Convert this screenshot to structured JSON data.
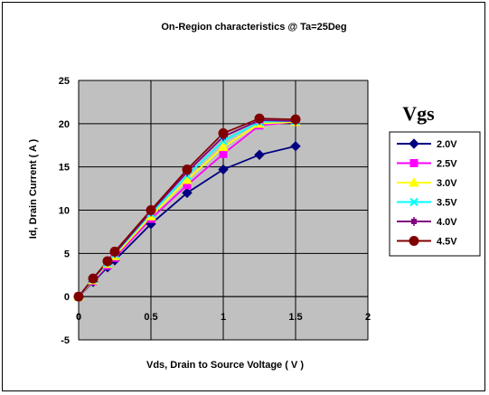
{
  "chart_data": {
    "type": "line",
    "title": "On-Region characteristics @ Ta=25Deg",
    "xlabel": "Vds, Drain to Source Voltage ( V )",
    "ylabel": "Id, Drain Current ( A )",
    "xlim": [
      0,
      2
    ],
    "ylim": [
      -5,
      25
    ],
    "xticks": [
      0,
      0.5,
      1,
      1.5,
      2
    ],
    "xtick_labels": [
      "0",
      "0.5",
      "1",
      "1.5",
      "2"
    ],
    "yticks": [
      -5,
      0,
      5,
      10,
      15,
      20,
      25
    ],
    "ytick_labels": [
      "-5",
      "0",
      "5",
      "10",
      "15",
      "20",
      "25"
    ],
    "grid": true,
    "legend_title": "Vgs",
    "legend_position": "right",
    "x": [
      0,
      0.1,
      0.2,
      0.25,
      0.5,
      0.75,
      1.0,
      1.25,
      1.5
    ],
    "series": [
      {
        "name": "2.0V",
        "color": "#000080",
        "marker": "diamond",
        "values": [
          0,
          1.7,
          3.4,
          4.2,
          8.4,
          12.0,
          14.7,
          16.4,
          17.4
        ]
      },
      {
        "name": "2.5V",
        "color": "#ff00ff",
        "marker": "square",
        "values": [
          0,
          1.8,
          3.6,
          4.5,
          9.0,
          12.9,
          16.5,
          19.8,
          20.2
        ]
      },
      {
        "name": "3.0V",
        "color": "#ffff00",
        "marker": "triangle",
        "values": [
          0,
          1.9,
          3.8,
          4.7,
          9.3,
          13.5,
          17.3,
          20.0,
          20.2
        ]
      },
      {
        "name": "3.5V",
        "color": "#00ffff",
        "marker": "x",
        "values": [
          0,
          2.0,
          3.9,
          4.9,
          9.6,
          14.0,
          18.0,
          20.2,
          20.3
        ]
      },
      {
        "name": "4.0V",
        "color": "#800080",
        "marker": "star",
        "values": [
          0,
          2.1,
          4.0,
          5.0,
          9.8,
          14.4,
          18.5,
          20.4,
          20.3
        ]
      },
      {
        "name": "4.5V",
        "color": "#800000",
        "marker": "circle",
        "values": [
          0,
          2.1,
          4.1,
          5.2,
          10.0,
          14.7,
          18.9,
          20.6,
          20.5
        ]
      }
    ]
  }
}
